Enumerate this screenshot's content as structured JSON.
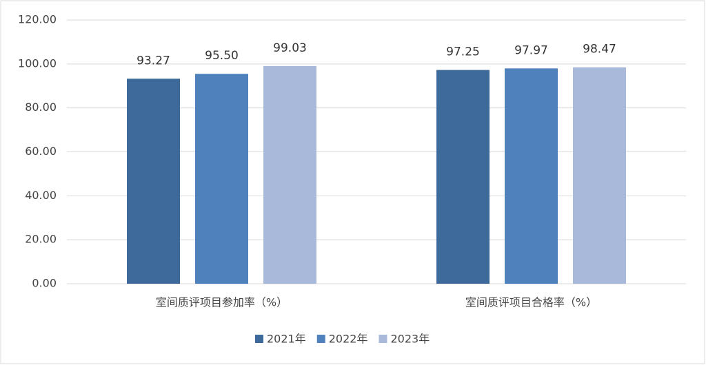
{
  "chart_data": {
    "type": "bar",
    "categories": [
      "室间质评项目参加率（%）",
      "室间质评项目合格率（%）"
    ],
    "series": [
      {
        "name": "2021年",
        "color": "#3e6a9b",
        "values": [
          93.27,
          97.25
        ],
        "value_labels": [
          "93.27",
          "97.25"
        ]
      },
      {
        "name": "2022年",
        "color": "#4f81bd",
        "values": [
          95.5,
          97.97
        ],
        "value_labels": [
          "95.50",
          "97.97"
        ]
      },
      {
        "name": "2023年",
        "color": "#a9b9d9",
        "values": [
          99.03,
          98.47
        ],
        "value_labels": [
          "99.03",
          "98.47"
        ]
      }
    ],
    "ylim": [
      0,
      120
    ],
    "yticks": [
      {
        "value": 0,
        "label": "0.00"
      },
      {
        "value": 20,
        "label": "20.00"
      },
      {
        "value": 40,
        "label": "40.00"
      },
      {
        "value": 60,
        "label": "60.00"
      },
      {
        "value": 80,
        "label": "80.00"
      },
      {
        "value": 100,
        "label": "100.00"
      },
      {
        "value": 120,
        "label": "120.00"
      }
    ],
    "grid": true,
    "legend": "bottom"
  }
}
